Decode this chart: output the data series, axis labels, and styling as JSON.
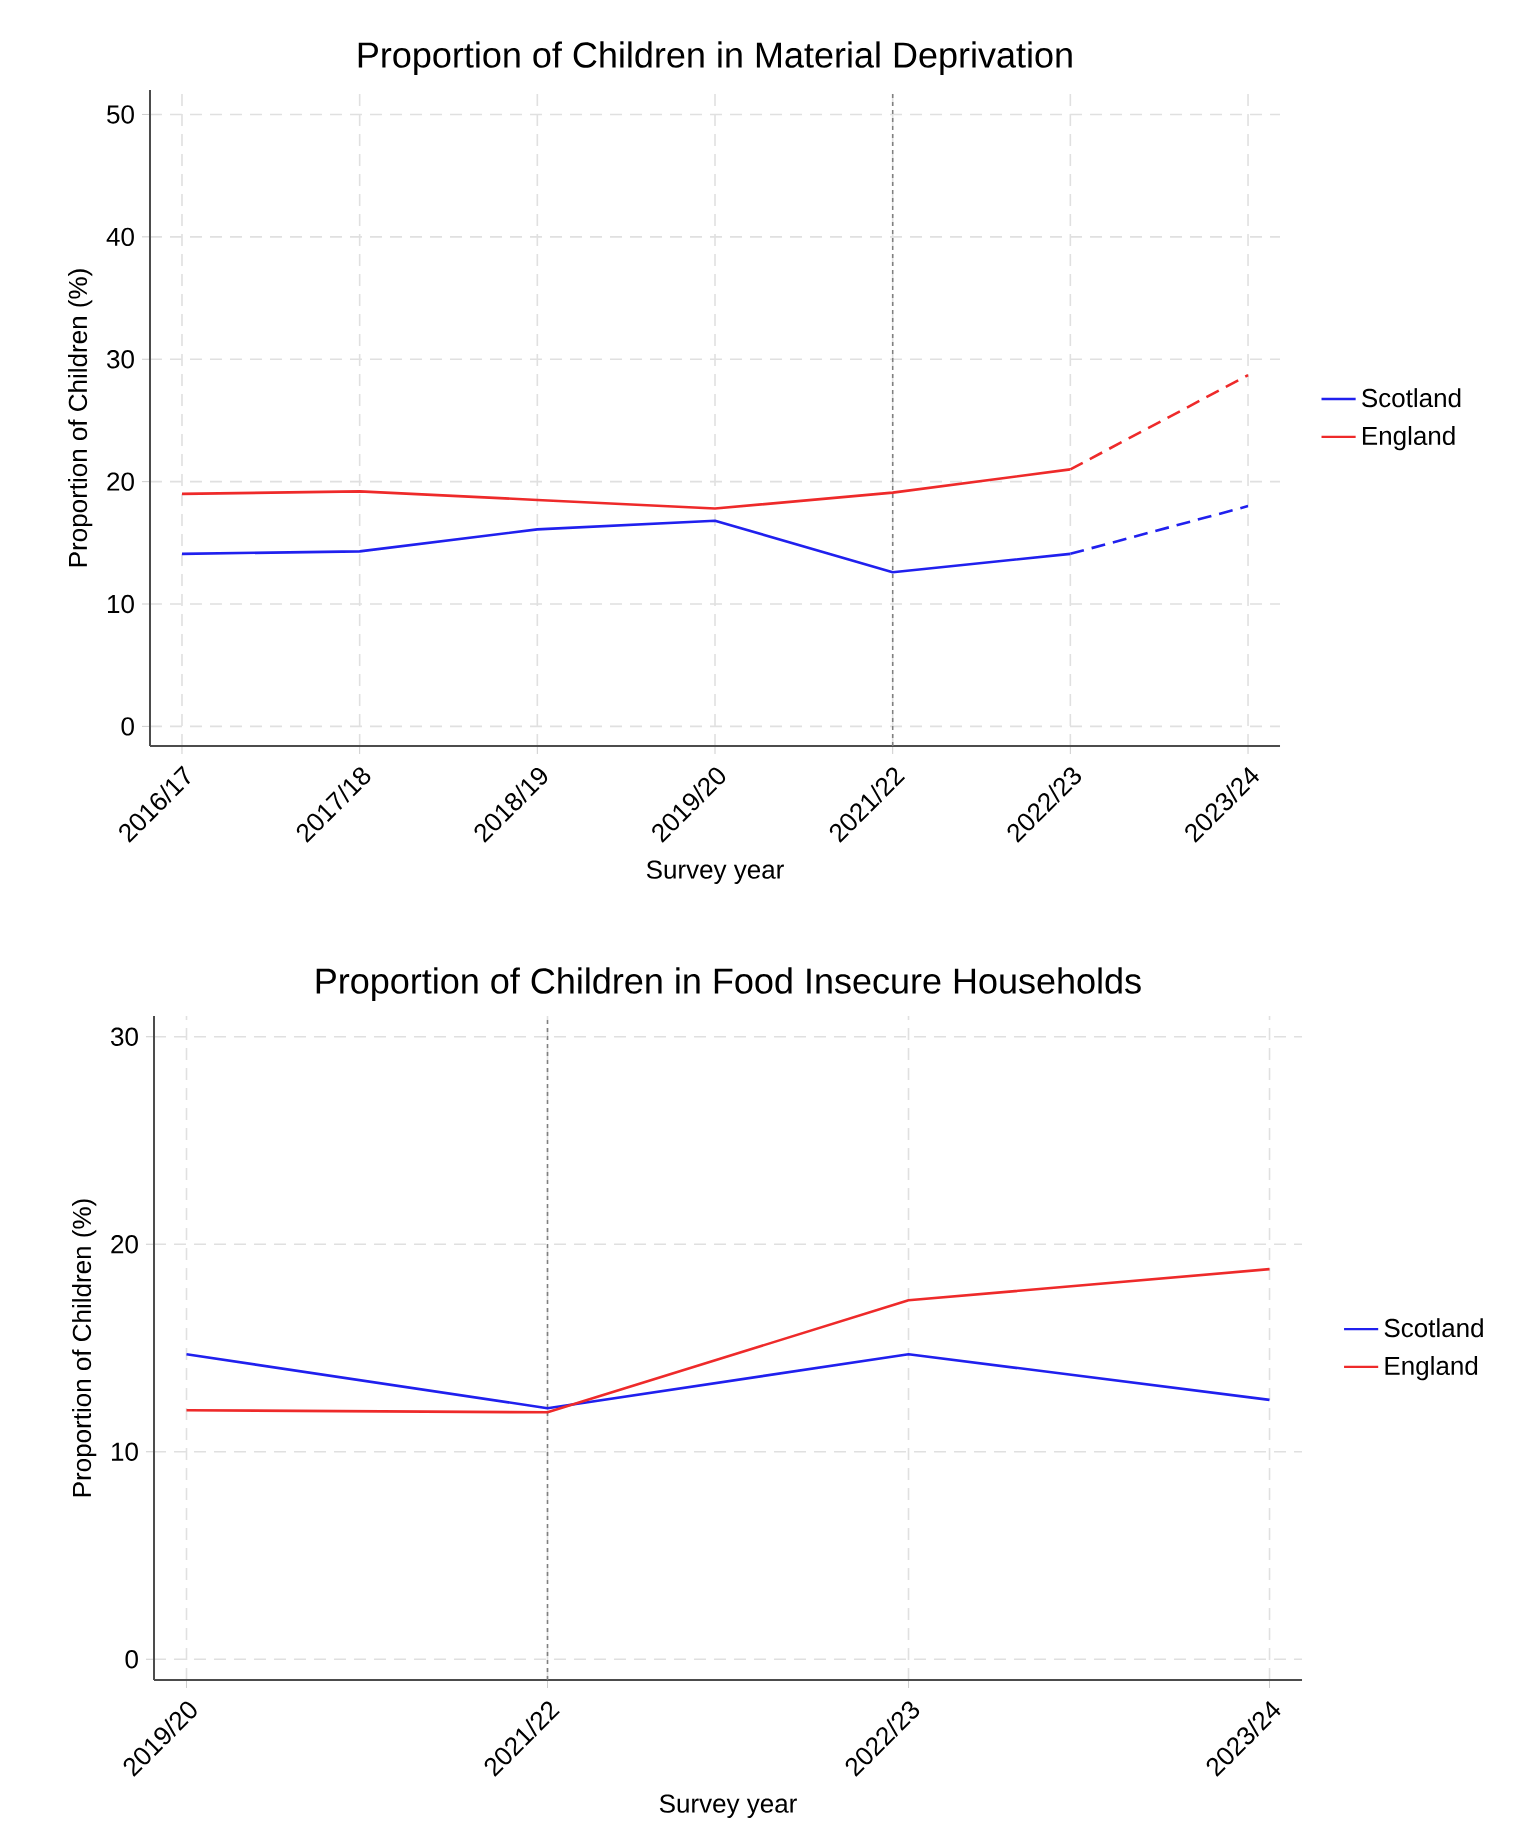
{
  "chart_data": [
    {
      "type": "line",
      "title": "Proportion of Children in Material Deprivation",
      "xlabel": "Survey year",
      "ylabel": "Proportion of Children (%)",
      "categories": [
        "2016/17",
        "2017/18",
        "2018/19",
        "2019/20",
        "2021/22",
        "2022/23",
        "2023/24"
      ],
      "ylim": [
        -1.6,
        52
      ],
      "yticks": [
        0,
        10,
        20,
        30,
        40,
        50
      ],
      "grid": true,
      "legend": "right",
      "ref_lines": [
        {
          "axis": "x",
          "value": "2021/22",
          "color": "#808080",
          "line_style": "dotted"
        }
      ],
      "series": [
        {
          "name": "Scotland",
          "color": "#2020ee",
          "values": [
            14.1,
            14.3,
            16.1,
            16.8,
            12.6,
            14.1,
            null
          ]
        },
        {
          "name": "England",
          "color": "#ee2a2a",
          "values": [
            19.0,
            19.2,
            18.5,
            17.8,
            19.1,
            21.0,
            null
          ]
        },
        {
          "color": "#2020ee",
          "line_style": "dashed",
          "values": [
            null,
            null,
            null,
            null,
            null,
            14.1,
            18.0
          ]
        },
        {
          "color": "#ee2a2a",
          "line_style": "dashed",
          "values": [
            null,
            null,
            null,
            null,
            null,
            21.0,
            28.7
          ]
        }
      ]
    },
    {
      "type": "line",
      "title": "Proportion of Children in Food Insecure Households",
      "xlabel": "Survey year",
      "ylabel": "Proportion of Children (%)",
      "categories": [
        "2019/20",
        "2021/22",
        "2022/23",
        "2023/24"
      ],
      "ylim": [
        -1,
        31
      ],
      "yticks": [
        0,
        10,
        20,
        30
      ],
      "grid": true,
      "legend": "right",
      "ref_lines": [
        {
          "axis": "x",
          "value": "2021/22",
          "color": "#808080",
          "line_style": "dotted"
        }
      ],
      "series": [
        {
          "name": "Scotland",
          "color": "#2020ee",
          "values": [
            14.7,
            12.1,
            14.7,
            12.5
          ]
        },
        {
          "name": "England",
          "color": "#ee2a2a",
          "values": [
            12.0,
            11.9,
            17.3,
            18.8
          ]
        }
      ]
    }
  ]
}
